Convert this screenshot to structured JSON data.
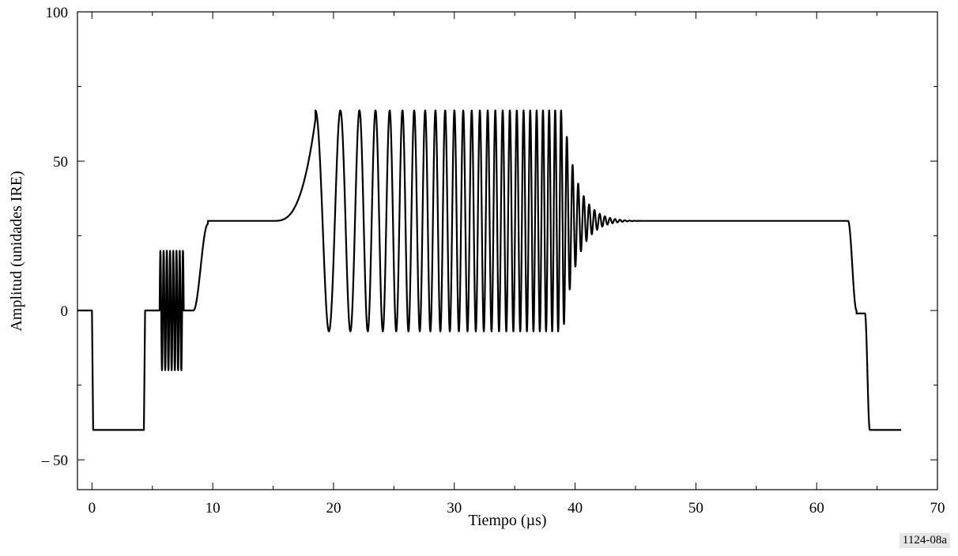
{
  "figure_id": "1124-08a",
  "chart_data": {
    "type": "line",
    "xlabel": "Tiempo (µs)",
    "ylabel": "Amplitud (unidades IRE)",
    "xlim": [
      -1.2,
      70
    ],
    "ylim": [
      -60,
      100
    ],
    "xticks": [
      0,
      10,
      20,
      30,
      40,
      50,
      60,
      70
    ],
    "yticks": [
      -50,
      0,
      50,
      100
    ],
    "ytick_labels": [
      "– 50",
      "0",
      "50",
      "100"
    ],
    "grid": false,
    "series": [
      {
        "color": "#000000",
        "segments": [
          {
            "kind": "level",
            "x0": -1.2,
            "x1": 0.0,
            "y": 0
          },
          {
            "kind": "level",
            "x0": 0.1,
            "x1": 4.3,
            "y": -40
          },
          {
            "kind": "level",
            "x0": 4.4,
            "x1": 5.6,
            "y": 0
          },
          {
            "kind": "burst",
            "x0": 5.6,
            "x1": 7.6,
            "cycles": 7.5,
            "amplitude": 20,
            "center": 0
          },
          {
            "kind": "level",
            "x0": 7.6,
            "x1": 8.4,
            "y": 0
          },
          {
            "kind": "rise",
            "x0": 8.4,
            "x1": 9.6,
            "y0": 0,
            "y1": 29
          },
          {
            "kind": "level",
            "x0": 9.6,
            "x1": 15.0,
            "y": 30
          },
          {
            "kind": "bump",
            "x0": 15.0,
            "x1": 18.5,
            "y0": 30,
            "y1": 64
          },
          {
            "kind": "sweep",
            "x0": 18.5,
            "x1": 45.5,
            "center": 30,
            "amplitude": 37,
            "start_freq": 0.4,
            "end_freq": 2.6,
            "decay_start": 39.0
          },
          {
            "kind": "level",
            "x0": 45.5,
            "x1": 62.6,
            "y": 30
          },
          {
            "kind": "rise",
            "x0": 62.6,
            "x1": 63.3,
            "y0": 30,
            "y1": 0
          },
          {
            "kind": "level",
            "x0": 63.3,
            "x1": 64.0,
            "y": -1
          },
          {
            "kind": "rise",
            "x0": 64.0,
            "x1": 64.4,
            "y0": -1,
            "y1": -40
          },
          {
            "kind": "level",
            "x0": 64.4,
            "x1": 67.0,
            "y": -40
          }
        ]
      }
    ]
  }
}
